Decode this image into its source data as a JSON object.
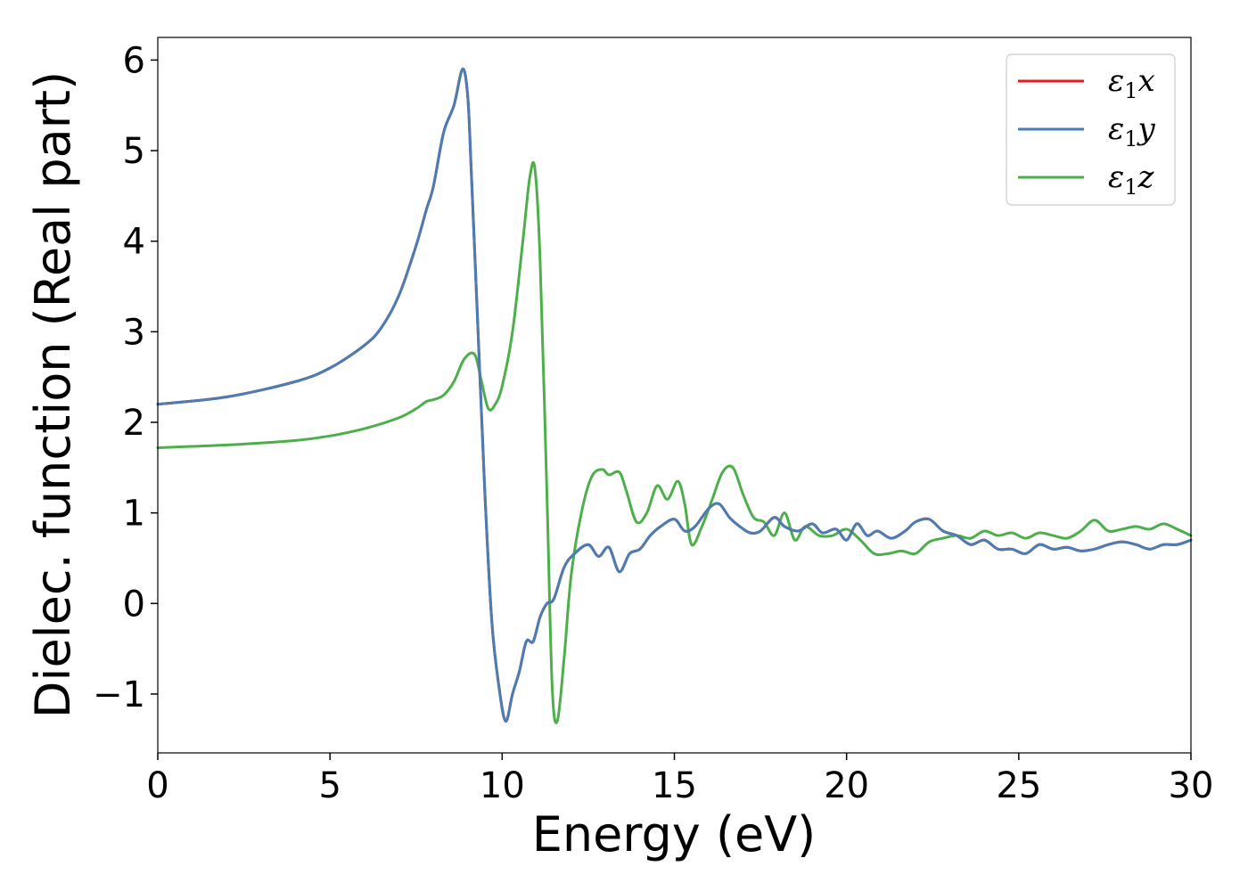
{
  "chart_data": {
    "type": "line",
    "title": "",
    "xlabel": "Energy (eV)",
    "ylabel": "Dielec. function (Real part)",
    "xlim": [
      0,
      30
    ],
    "ylim": [
      -1.65,
      6.25
    ],
    "xticks": [
      0,
      5,
      10,
      15,
      20,
      25,
      30
    ],
    "xtick_labels": [
      "0",
      "5",
      "10",
      "15",
      "20",
      "25",
      "30"
    ],
    "yticks": [
      -1,
      0,
      1,
      2,
      3,
      4,
      5,
      6
    ],
    "ytick_labels": [
      "−1",
      "0",
      "1",
      "2",
      "3",
      "4",
      "5",
      "6"
    ],
    "grid": false,
    "legend_position": "top-right",
    "series": [
      {
        "name": "ε₁x",
        "legend_main": "ε",
        "legend_sub": "1",
        "legend_tail": "x",
        "color": "#e41a1c",
        "x": [
          0,
          2,
          4,
          5,
          6,
          6.5,
          7,
          7.5,
          7.8,
          8.0,
          8.3,
          8.6,
          8.85,
          9.0,
          9.1,
          9.3,
          9.5,
          9.7,
          9.9,
          10.1,
          10.3,
          10.5,
          10.7,
          10.9,
          11.1,
          11.3,
          11.5,
          11.8,
          12.1,
          12.5,
          12.8,
          13.1,
          13.4,
          13.7,
          14.0,
          14.3,
          14.6,
          15.0,
          15.3,
          15.6,
          16.0,
          16.3,
          16.6,
          16.9,
          17.2,
          17.5,
          17.9,
          18.2,
          18.6,
          19.0,
          19.3,
          19.7,
          20.0,
          20.3,
          20.6,
          20.9,
          21.3,
          21.7,
          22.0,
          22.4,
          22.8,
          23.2,
          23.6,
          24.0,
          24.4,
          24.8,
          25.2,
          25.6,
          26.0,
          26.4,
          26.8,
          27.2,
          27.6,
          28.0,
          28.4,
          28.8,
          29.2,
          29.6,
          30.0
        ],
        "y": [
          2.2,
          2.28,
          2.45,
          2.6,
          2.85,
          3.05,
          3.4,
          3.95,
          4.35,
          4.6,
          5.2,
          5.5,
          5.9,
          5.6,
          4.8,
          3.0,
          1.2,
          -0.2,
          -0.9,
          -1.3,
          -1.0,
          -0.75,
          -0.42,
          -0.42,
          -0.15,
          0.0,
          0.05,
          0.4,
          0.55,
          0.65,
          0.52,
          0.62,
          0.35,
          0.55,
          0.6,
          0.75,
          0.85,
          0.93,
          0.8,
          0.85,
          1.05,
          1.1,
          0.95,
          0.85,
          0.78,
          0.8,
          0.95,
          0.85,
          0.8,
          0.88,
          0.78,
          0.82,
          0.7,
          0.88,
          0.75,
          0.8,
          0.72,
          0.8,
          0.9,
          0.93,
          0.8,
          0.75,
          0.65,
          0.7,
          0.6,
          0.6,
          0.55,
          0.65,
          0.6,
          0.62,
          0.58,
          0.6,
          0.65,
          0.68,
          0.65,
          0.6,
          0.65,
          0.65,
          0.7
        ]
      },
      {
        "name": "ε₁y",
        "legend_main": "ε",
        "legend_sub": "1",
        "legend_tail": "y",
        "color": "#4a7db4",
        "x": [
          0,
          2,
          4,
          5,
          6,
          6.5,
          7,
          7.5,
          7.8,
          8.0,
          8.3,
          8.6,
          8.85,
          9.0,
          9.1,
          9.3,
          9.5,
          9.7,
          9.9,
          10.1,
          10.3,
          10.5,
          10.7,
          10.9,
          11.1,
          11.3,
          11.5,
          11.8,
          12.1,
          12.5,
          12.8,
          13.1,
          13.4,
          13.7,
          14.0,
          14.3,
          14.6,
          15.0,
          15.3,
          15.6,
          16.0,
          16.3,
          16.6,
          16.9,
          17.2,
          17.5,
          17.9,
          18.2,
          18.6,
          19.0,
          19.3,
          19.7,
          20.0,
          20.3,
          20.6,
          20.9,
          21.3,
          21.7,
          22.0,
          22.4,
          22.8,
          23.2,
          23.6,
          24.0,
          24.4,
          24.8,
          25.2,
          25.6,
          26.0,
          26.4,
          26.8,
          27.2,
          27.6,
          28.0,
          28.4,
          28.8,
          29.2,
          29.6,
          30.0
        ],
        "y": [
          2.2,
          2.28,
          2.45,
          2.6,
          2.85,
          3.05,
          3.4,
          3.95,
          4.35,
          4.6,
          5.2,
          5.5,
          5.9,
          5.6,
          4.8,
          3.0,
          1.2,
          -0.2,
          -0.9,
          -1.3,
          -1.0,
          -0.75,
          -0.42,
          -0.42,
          -0.15,
          0.0,
          0.05,
          0.4,
          0.55,
          0.65,
          0.52,
          0.62,
          0.35,
          0.55,
          0.6,
          0.75,
          0.85,
          0.93,
          0.8,
          0.85,
          1.05,
          1.1,
          0.95,
          0.85,
          0.78,
          0.8,
          0.95,
          0.85,
          0.8,
          0.88,
          0.78,
          0.82,
          0.7,
          0.88,
          0.75,
          0.8,
          0.72,
          0.8,
          0.9,
          0.93,
          0.8,
          0.75,
          0.65,
          0.7,
          0.6,
          0.6,
          0.55,
          0.65,
          0.6,
          0.62,
          0.58,
          0.6,
          0.65,
          0.68,
          0.65,
          0.6,
          0.65,
          0.65,
          0.7
        ]
      },
      {
        "name": "ε₁z",
        "legend_main": "ε",
        "legend_sub": "1",
        "legend_tail": "z",
        "color": "#4daf4a",
        "x": [
          0,
          2,
          4,
          5,
          6,
          7,
          7.5,
          7.8,
          8.0,
          8.3,
          8.6,
          8.9,
          9.2,
          9.4,
          9.6,
          9.8,
          10.0,
          10.3,
          10.6,
          10.8,
          10.95,
          11.1,
          11.3,
          11.45,
          11.6,
          11.8,
          12.0,
          12.3,
          12.6,
          12.9,
          13.1,
          13.4,
          13.6,
          13.9,
          14.2,
          14.5,
          14.8,
          15.1,
          15.3,
          15.5,
          15.8,
          16.1,
          16.4,
          16.7,
          17.0,
          17.3,
          17.6,
          17.9,
          18.2,
          18.5,
          18.8,
          19.2,
          19.6,
          20.0,
          20.4,
          20.8,
          21.2,
          21.6,
          22.0,
          22.4,
          22.8,
          23.2,
          23.6,
          24.0,
          24.4,
          24.8,
          25.2,
          25.6,
          26.0,
          26.4,
          26.8,
          27.2,
          27.6,
          28.0,
          28.4,
          28.8,
          29.2,
          29.6,
          30.0
        ],
        "y": [
          1.72,
          1.75,
          1.8,
          1.85,
          1.93,
          2.05,
          2.15,
          2.23,
          2.25,
          2.3,
          2.45,
          2.7,
          2.75,
          2.45,
          2.15,
          2.2,
          2.4,
          3.0,
          4.0,
          4.7,
          4.8,
          3.8,
          1.2,
          -0.9,
          -1.3,
          -0.6,
          0.3,
          1.0,
          1.4,
          1.48,
          1.42,
          1.45,
          1.25,
          0.9,
          1.0,
          1.3,
          1.15,
          1.35,
          1.1,
          0.65,
          0.85,
          1.15,
          1.45,
          1.5,
          1.2,
          0.95,
          0.9,
          0.75,
          1.0,
          0.7,
          0.85,
          0.75,
          0.75,
          0.82,
          0.7,
          0.55,
          0.55,
          0.58,
          0.55,
          0.68,
          0.72,
          0.75,
          0.72,
          0.8,
          0.75,
          0.78,
          0.72,
          0.78,
          0.75,
          0.72,
          0.8,
          0.92,
          0.8,
          0.82,
          0.85,
          0.82,
          0.88,
          0.82,
          0.75
        ]
      }
    ]
  }
}
